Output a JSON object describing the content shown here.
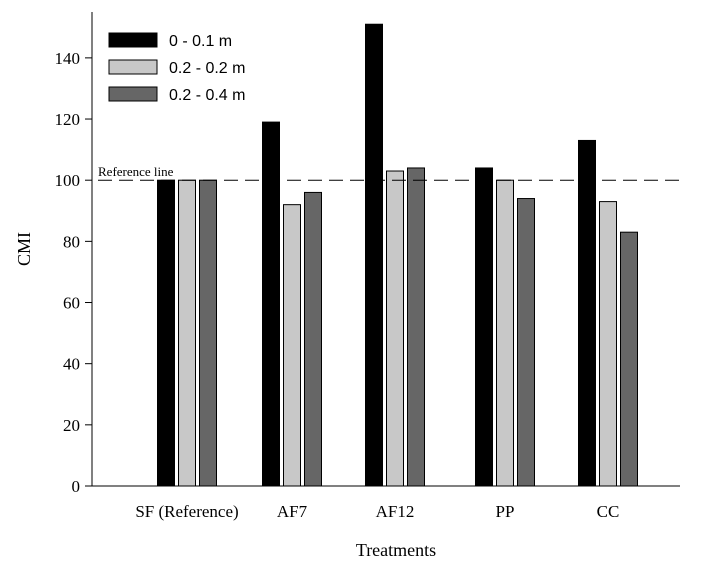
{
  "chart_data": {
    "type": "bar",
    "xlabel": "Treatments",
    "ylabel": "CMI",
    "ylim": [
      0,
      155
    ],
    "yticks": [
      0,
      20,
      40,
      60,
      80,
      100,
      120,
      140
    ],
    "categories": [
      "SF (Reference)",
      "AF7",
      "AF12",
      "PP",
      "CC"
    ],
    "series": [
      {
        "name": "0 - 0.1 m",
        "color": "#000000",
        "values": [
          100,
          119,
          151,
          104,
          113
        ]
      },
      {
        "name": "0.2 - 0.2 m",
        "color": "#c8c8c8",
        "values": [
          100,
          92,
          103,
          100,
          93
        ]
      },
      {
        "name": "0.2 - 0.4 m",
        "color": "#666666",
        "values": [
          100,
          96,
          104,
          94,
          83
        ]
      }
    ],
    "reference_line": {
      "value": 100,
      "label": "Reference line",
      "style": "dashed"
    },
    "legend_position": "top-left",
    "grid": false
  }
}
